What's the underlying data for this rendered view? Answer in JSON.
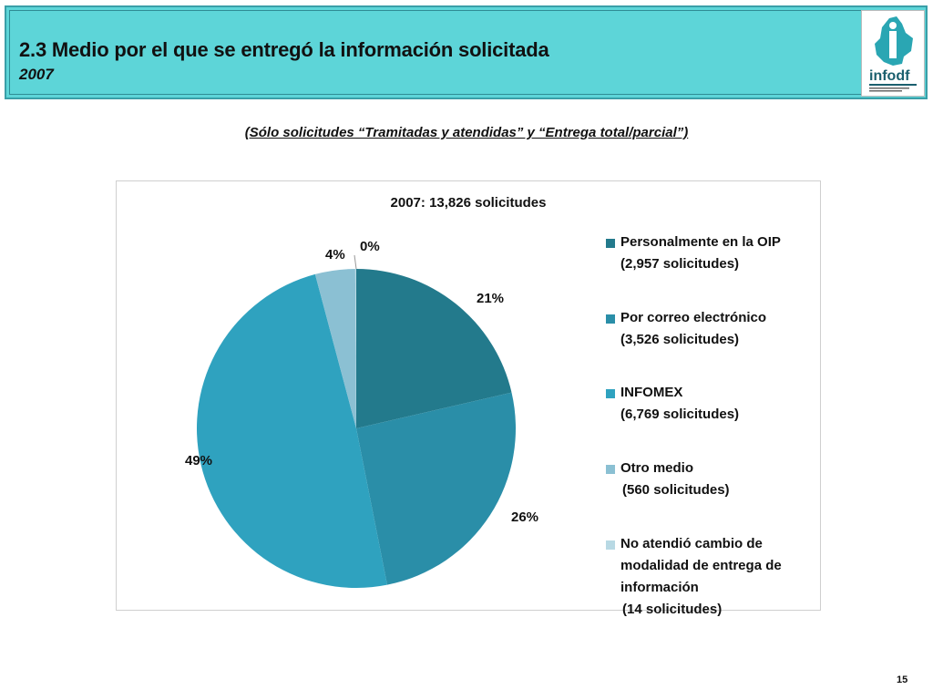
{
  "header": {
    "title": "2.3 Medio por el que se entregó la información solicitada",
    "year": "2007"
  },
  "logo": {
    "text": "infodf"
  },
  "subtitle": "(Sólo solicitudes “Tramitadas y atendidas” y “Entrega total/parcial”)",
  "chart_data": {
    "type": "pie",
    "title": "2007: 13,826 solicitudes",
    "categories": [
      "Personalmente en la OIP",
      "Por correo electrónico",
      "INFOMEX",
      "Otro medio",
      "No atendió cambio de modalidad de entrega de información"
    ],
    "values": [
      2957,
      3526,
      6769,
      560,
      14
    ],
    "labels": [
      "21%",
      "26%",
      "49%",
      "4%",
      "0%"
    ],
    "colors": [
      "#237a8c",
      "#2a8ea8",
      "#2fa2bf",
      "#8bc0d3",
      "#b8d9e4"
    ],
    "legend_position": "right"
  },
  "legend": {
    "items": [
      {
        "label": "Personalmente en la OIP",
        "detail": "(2,957 solicitudes)"
      },
      {
        "label": "Por correo electrónico",
        "detail": "(3,526 solicitudes)"
      },
      {
        "label": "INFOMEX",
        "detail": "(6,769  solicitudes)"
      },
      {
        "label": "Otro medio",
        "detail": "(560 solicitudes)"
      },
      {
        "label": "No atendió cambio de modalidad de entrega de información",
        "detail": "(14 solicitudes)"
      }
    ]
  },
  "page_number": "15"
}
